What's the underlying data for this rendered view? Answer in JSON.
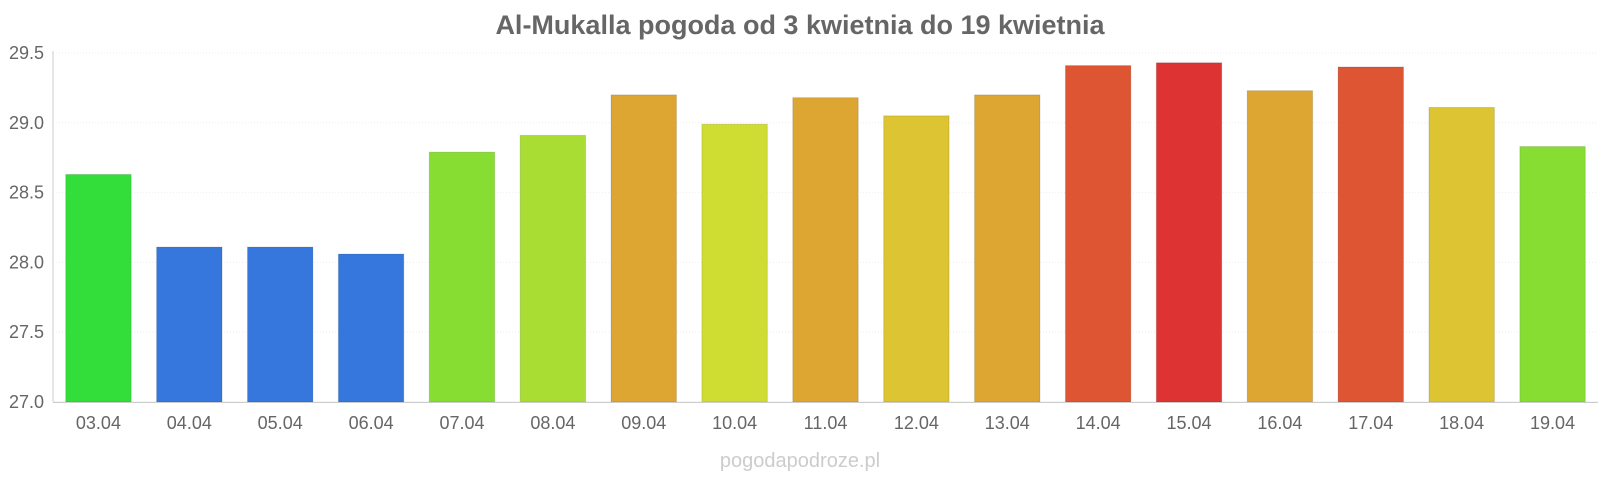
{
  "chart_data": {
    "type": "bar",
    "title": "Al-Mukalla pogoda od 3 kwietnia do 19 kwietnia",
    "xlabel": "",
    "ylabel": "",
    "ylim": [
      27.0,
      29.5
    ],
    "yticks": [
      "27.0",
      "27.5",
      "28.0",
      "28.5",
      "29.0",
      "29.5"
    ],
    "grid": true,
    "categories": [
      "03.04",
      "04.04",
      "05.04",
      "06.04",
      "07.04",
      "08.04",
      "09.04",
      "10.04",
      "11.04",
      "12.04",
      "13.04",
      "14.04",
      "15.04",
      "16.04",
      "17.04",
      "18.04",
      "19.04"
    ],
    "values": [
      28.63,
      28.11,
      28.11,
      28.06,
      28.79,
      28.91,
      29.2,
      28.99,
      29.18,
      29.05,
      29.2,
      29.41,
      29.43,
      29.23,
      29.4,
      29.11,
      28.83
    ],
    "colors": [
      "#33dd3a",
      "#3677dd",
      "#3677dd",
      "#3677dd",
      "#88dd33",
      "#aadd33",
      "#dda633",
      "#cfdd33",
      "#dda633",
      "#ddc433",
      "#dda633",
      "#dd5533",
      "#dd3333",
      "#dda633",
      "#dd5533",
      "#ddc433",
      "#88dd33"
    ]
  },
  "watermark": "pogodapodroze.pl"
}
